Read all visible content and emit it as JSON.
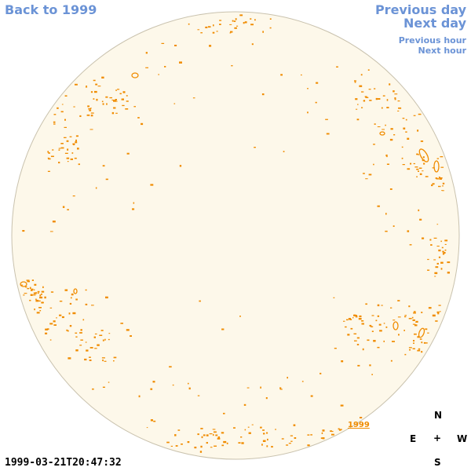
{
  "nav": {
    "back_label": "Back to 1999",
    "prev_day": "Previous day",
    "next_day": "Next day",
    "prev_hour": "Previous hour",
    "next_hour": "Next hour"
  },
  "disk": {
    "fill": "#fdf8ea",
    "edge": "#c9c2ae",
    "contour_color": "#f08c00"
  },
  "year_link": "1999",
  "timestamp": "1999-03-21T20:47:32",
  "compass": {
    "north": "N",
    "south": "S",
    "east": "E",
    "west": "W",
    "center": "+"
  }
}
